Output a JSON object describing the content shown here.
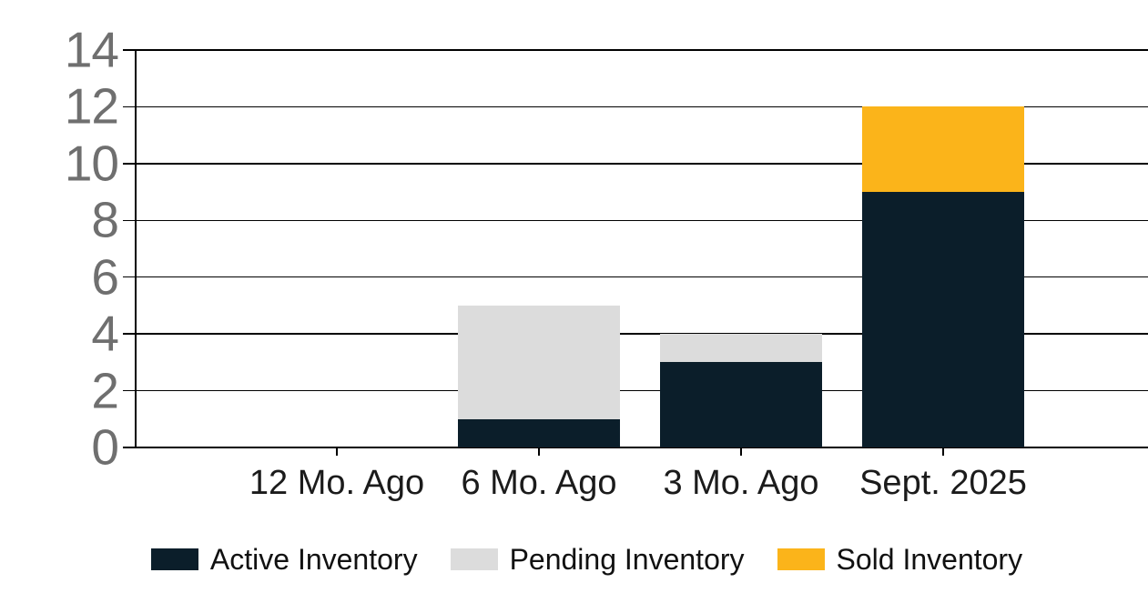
{
  "chart_data": {
    "type": "bar",
    "stacked": true,
    "title": "",
    "xlabel": "",
    "ylabel": "",
    "categories": [
      "12 Mo. Ago",
      "6 Mo. Ago",
      "3 Mo. Ago",
      "Sept. 2025"
    ],
    "series": [
      {
        "name": "Active Inventory",
        "color": "#0b1e2a",
        "values": [
          0,
          1,
          3,
          9
        ]
      },
      {
        "name": "Pending Inventory",
        "color": "#dcdcdc",
        "values": [
          0,
          4,
          1,
          0
        ]
      },
      {
        "name": "Sold Inventory",
        "color": "#fbb41a",
        "values": [
          0,
          0,
          0,
          3
        ]
      }
    ],
    "ylim": [
      0,
      14
    ],
    "yticks": [
      "0",
      "2",
      "4",
      "6",
      "8",
      "10",
      "12",
      "14"
    ],
    "grid": true,
    "legend_position": "bottom",
    "colors": {
      "grid_line": "#000000",
      "y_tick_label": "#6f6f6f",
      "x_tick_label": "#1b1b1b",
      "legend_label": "#111111",
      "background": "#ffffff"
    }
  }
}
